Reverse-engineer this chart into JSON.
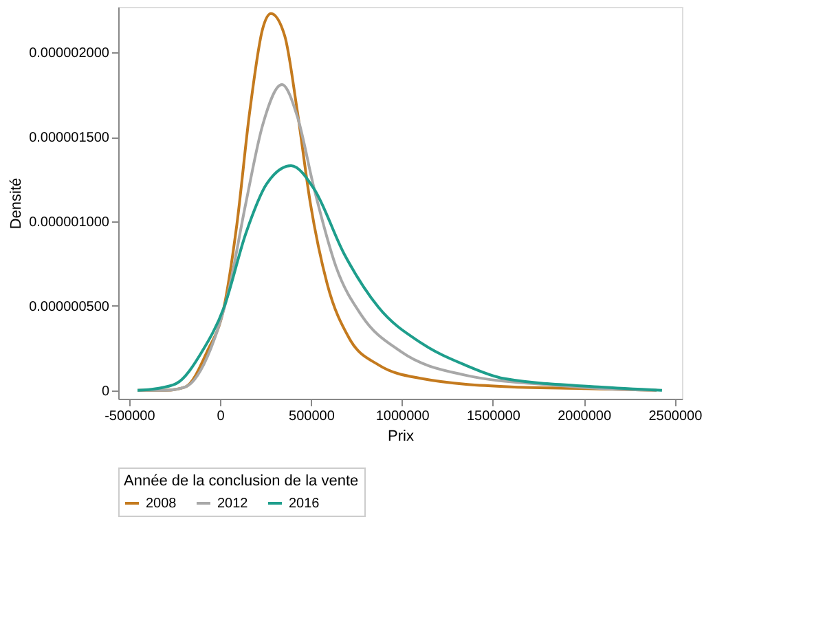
{
  "chart_data": {
    "type": "line",
    "xlabel": "Prix",
    "ylabel": "Densité",
    "legend_title": "Année de la conclusion de la vente",
    "legend": "bottom",
    "grid": false,
    "line_style": "solid",
    "marker": "none",
    "xlim": [
      -560000,
      2540000
    ],
    "xticks": [
      -500000,
      0,
      500000,
      1000000,
      1500000,
      2000000,
      2500000
    ],
    "ylim": [
      -5e-08,
      2.27e-06
    ],
    "yticks": [
      0,
      {
        "value": 5e-07,
        "label": "0.000000500"
      },
      {
        "value": 1e-06,
        "label": "0.000001000"
      },
      {
        "value": 1.5e-06,
        "label": "0.000001500"
      },
      {
        "value": 2e-06,
        "label": "0.000002000"
      }
    ],
    "series": [
      {
        "name": "2008",
        "color": "#c47a1e",
        "x": [
          -454000,
          -300000,
          -191000,
          -71000,
          21000,
          92000,
          163000,
          234000,
          280000,
          355000,
          425000,
          496000,
          589000,
          709000,
          872000,
          1106000,
          1600000,
          2000000,
          2400000
        ],
        "values": [
          0.0,
          0.0,
          2e-08,
          2.3e-07,
          4.9e-07,
          9.8e-07,
          1.65e-06,
          2.14e-06,
          2.23e-06,
          2.1e-06,
          1.65e-06,
          1.11e-06,
          6.3e-07,
          3.1e-07,
          1.5e-07,
          7e-08,
          2e-08,
          1e-08,
          0.0
        ]
      },
      {
        "name": "2012",
        "color": "#a8a8a8",
        "x": [
          -454000,
          -300000,
          -191000,
          -50000,
          43000,
          142000,
          234000,
          340000,
          425000,
          518000,
          638000,
          780000,
          993000,
          1347000,
          1840000,
          2100000,
          2400000
        ],
        "values": [
          0.0,
          0.0,
          2e-08,
          2.5e-07,
          5.7e-07,
          1.11e-06,
          1.57e-06,
          1.81e-06,
          1.62e-06,
          1.19e-06,
          7.3e-07,
          4.4e-07,
          2.3e-07,
          9e-08,
          3e-08,
          1e-08,
          0.0
        ]
      },
      {
        "name": "2016",
        "color": "#1e9e8c",
        "x": [
          -454000,
          -350000,
          -241000,
          -99000,
          21000,
          142000,
          255000,
          390000,
          518000,
          681000,
          872000,
          1106000,
          1347000,
          1560000,
          2080000,
          2430000
        ],
        "values": [
          0.0,
          1e-08,
          4e-08,
          2.3e-07,
          4.9e-07,
          9.3e-07,
          1.22e-06,
          1.33e-06,
          1.19e-06,
          8.1e-07,
          4.9e-07,
          2.8e-07,
          1.5e-07,
          7e-08,
          2e-08,
          0.0
        ]
      }
    ]
  }
}
